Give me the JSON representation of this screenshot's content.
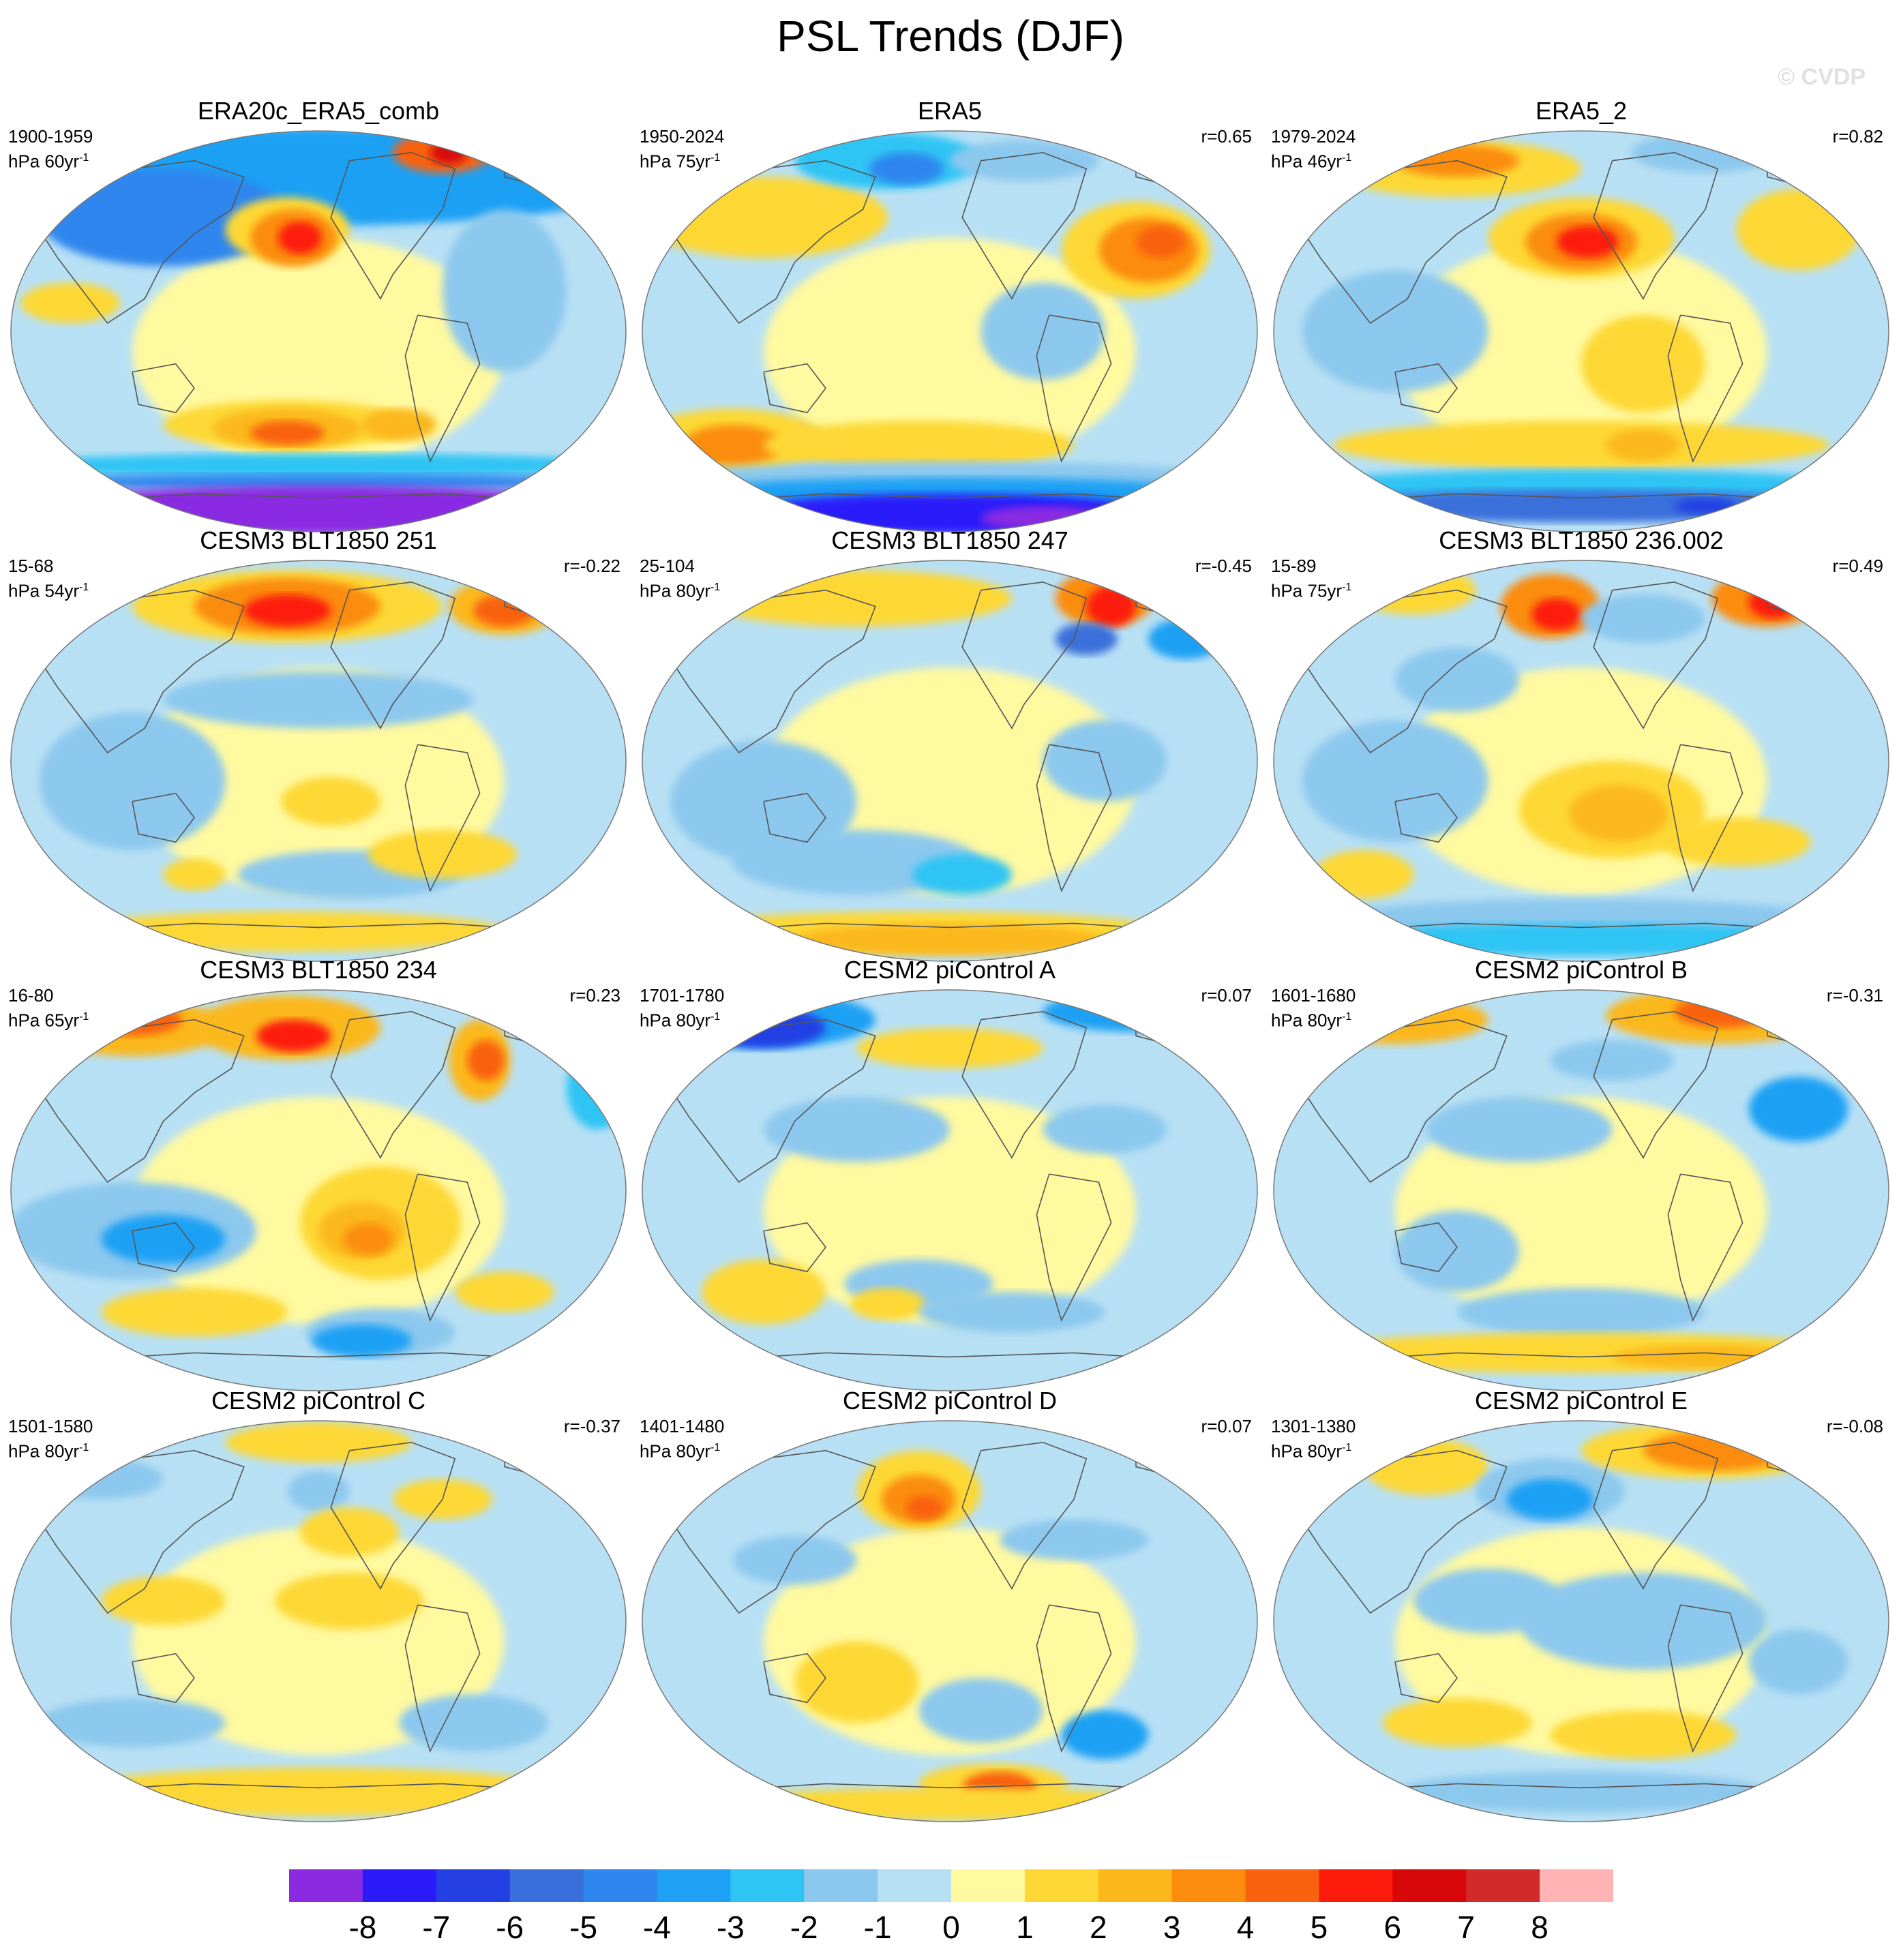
{
  "title": "PSL Trends (DJF)",
  "watermark": "© CVDP",
  "panels": [
    {
      "title": "ERA20c_ERA5_comb",
      "period": "1900-1959",
      "units": "hPa 60yr",
      "corr": ""
    },
    {
      "title": "ERA5",
      "period": "1950-2024",
      "units": "hPa 75yr",
      "corr": "r=0.65"
    },
    {
      "title": "ERA5_2",
      "period": "1979-2024",
      "units": "hPa 46yr",
      "corr": "r=0.82"
    },
    {
      "title": "CESM3 BLT1850 251",
      "period": "15-68",
      "units": "hPa 54yr",
      "corr": "r=-0.22"
    },
    {
      "title": "CESM3 BLT1850 247",
      "period": "25-104",
      "units": "hPa 80yr",
      "corr": "r=-0.45"
    },
    {
      "title": "CESM3 BLT1850 236.002",
      "period": "15-89",
      "units": "hPa 75yr",
      "corr": "r=0.49"
    },
    {
      "title": "CESM3 BLT1850 234",
      "period": "16-80",
      "units": "hPa 65yr",
      "corr": "r=0.23"
    },
    {
      "title": "CESM2 piControl A",
      "period": "1701-1780",
      "units": "hPa 80yr",
      "corr": "r=0.07"
    },
    {
      "title": "CESM2 piControl B",
      "period": "1601-1680",
      "units": "hPa 80yr",
      "corr": "r=-0.31"
    },
    {
      "title": "CESM2 piControl C",
      "period": "1501-1580",
      "units": "hPa 80yr",
      "corr": "r=-0.37"
    },
    {
      "title": "CESM2 piControl D",
      "period": "1401-1480",
      "units": "hPa 80yr",
      "corr": "r=0.07"
    },
    {
      "title": "CESM2 piControl E",
      "period": "1301-1380",
      "units": "hPa 80yr",
      "corr": "r=-0.08"
    }
  ],
  "colorbar": {
    "labels": [
      "-8",
      "-7",
      "-6",
      "-5",
      "-4",
      "-3",
      "-2",
      "-1",
      "0",
      "1",
      "2",
      "3",
      "4",
      "5",
      "6",
      "7",
      "8"
    ],
    "colors": [
      "#8a2be2",
      "#2b1bfa",
      "#2440e4",
      "#3a6fdb",
      "#2f86ee",
      "#1ea0f4",
      "#2ec4f4",
      "#8cc8ee",
      "#b8e0f4",
      "#fff9a0",
      "#fdd835",
      "#fbb81b",
      "#fb8c0e",
      "#f9620f",
      "#fd1c0c",
      "#d8080a",
      "#d22a2a",
      "#ffb3b3"
    ]
  },
  "colors": {
    "coast": "#555555",
    "outline": "#777777"
  }
}
